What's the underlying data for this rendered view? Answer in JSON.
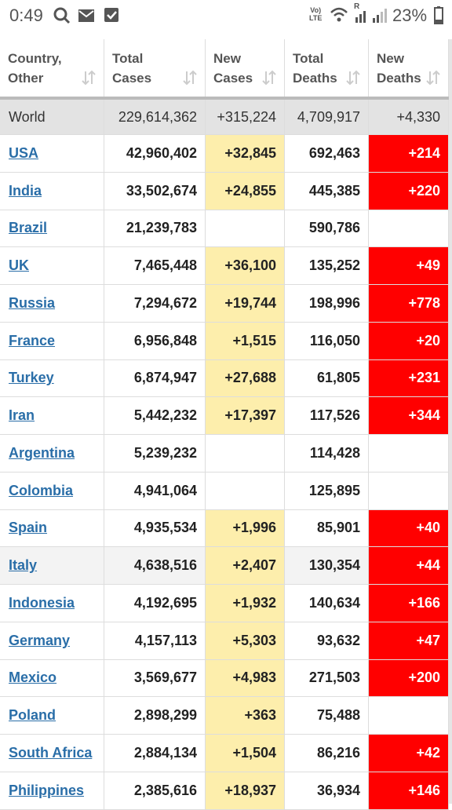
{
  "status_bar": {
    "time": "0:49",
    "volte": [
      "Vo)",
      "LTE"
    ],
    "roaming": "R",
    "battery": "23%"
  },
  "table": {
    "header": [
      [
        "Country,",
        "Other"
      ],
      [
        "Total",
        "Cases"
      ],
      [
        "New",
        "Cases"
      ],
      [
        "Total",
        "Deaths"
      ],
      [
        "New",
        "Deaths"
      ]
    ],
    "world": [
      "World",
      "229,614,362",
      "+315,224",
      "4,709,917",
      "+4,330"
    ],
    "rows": [
      [
        "USA",
        "42,960,402",
        "+32,845",
        "692,463",
        "+214"
      ],
      [
        "India",
        "33,502,674",
        "+24,855",
        "445,385",
        "+220"
      ],
      [
        "Brazil",
        "21,239,783",
        null,
        "590,786",
        null
      ],
      [
        "UK",
        "7,465,448",
        "+36,100",
        "135,252",
        "+49"
      ],
      [
        "Russia",
        "7,294,672",
        "+19,744",
        "198,996",
        "+778"
      ],
      [
        "France",
        "6,956,848",
        "+1,515",
        "116,050",
        "+20"
      ],
      [
        "Turkey",
        "6,874,947",
        "+27,688",
        "61,805",
        "+231"
      ],
      [
        "Iran",
        "5,442,232",
        "+17,397",
        "117,526",
        "+344"
      ],
      [
        "Argentina",
        "5,239,232",
        null,
        "114,428",
        null
      ],
      [
        "Colombia",
        "4,941,064",
        null,
        "125,895",
        null
      ],
      [
        "Spain",
        "4,935,534",
        "+1,996",
        "85,901",
        "+40"
      ],
      [
        "Italy",
        "4,638,516",
        "+2,407",
        "130,354",
        "+44"
      ],
      [
        "Indonesia",
        "4,192,695",
        "+1,932",
        "140,634",
        "+166"
      ],
      [
        "Germany",
        "4,157,113",
        "+5,303",
        "93,632",
        "+47"
      ],
      [
        "Mexico",
        "3,569,677",
        "+4,983",
        "271,503",
        "+200"
      ],
      [
        "Poland",
        "2,898,299",
        "+363",
        "75,488",
        null
      ],
      [
        "South Africa",
        "2,884,134",
        "+1,504",
        "86,216",
        "+42"
      ],
      [
        "Philippines",
        "2,385,616",
        "+18,937",
        "36,934",
        "+146"
      ]
    ]
  }
}
